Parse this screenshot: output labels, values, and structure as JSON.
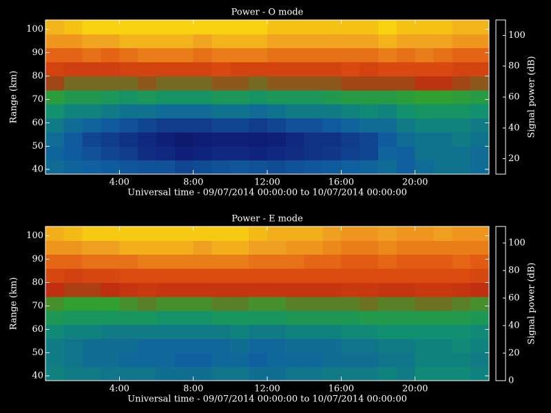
{
  "chart_data": [
    {
      "type": "heatmap",
      "title": "Power - O mode",
      "xlabel": "Universal time - 09/07/2014 00:00:00 to 10/07/2014 00:00:00",
      "ylabel": "Range (km)",
      "colorbar_label": "Signal power (dB)",
      "xlim": [
        0,
        24
      ],
      "ylim": [
        38,
        104
      ],
      "clim": [
        10,
        110
      ],
      "xticks": [
        {
          "value": 4,
          "label": "4:00"
        },
        {
          "value": 8,
          "label": "8:00"
        },
        {
          "value": 12,
          "label": "12:00"
        },
        {
          "value": 16,
          "label": "16:00"
        },
        {
          "value": 20,
          "label": "20:00"
        }
      ],
      "yticks": [
        40,
        50,
        60,
        70,
        80,
        90,
        100
      ],
      "cticks": [
        20,
        40,
        60,
        80,
        100
      ],
      "colormap": [
        "#000040",
        "#10207a",
        "#1060a0",
        "#109070",
        "#30a030",
        "#c03010",
        "#e05010",
        "#f0a020",
        "#ffff00"
      ],
      "x_bins": [
        0,
        1,
        2,
        3,
        4,
        5,
        6,
        7,
        8,
        9,
        10,
        11,
        12,
        13,
        14,
        15,
        16,
        17,
        18,
        19,
        20,
        21,
        22,
        23,
        24
      ],
      "y_bins": [
        38,
        44,
        50,
        56,
        62,
        68,
        74,
        80,
        86,
        92,
        98,
        104
      ],
      "values": [
        [
          38,
          36,
          35,
          34,
          33,
          32,
          32,
          30,
          31,
          32,
          33,
          32,
          31,
          32,
          33,
          34,
          35,
          36,
          38,
          35,
          38,
          40,
          40,
          38
        ],
        [
          36,
          34,
          32,
          30,
          28,
          25,
          24,
          22,
          23,
          24,
          24,
          23,
          24,
          25,
          26,
          27,
          29,
          30,
          36,
          35,
          40,
          40,
          40,
          38
        ],
        [
          38,
          34,
          30,
          28,
          26,
          24,
          22,
          20,
          21,
          22,
          22,
          21,
          22,
          24,
          26,
          26,
          28,
          30,
          34,
          38,
          40,
          40,
          42,
          40
        ],
        [
          42,
          38,
          36,
          34,
          32,
          30,
          28,
          28,
          28,
          30,
          30,
          28,
          30,
          32,
          32,
          34,
          36,
          38,
          38,
          42,
          44,
          44,
          44,
          42
        ],
        [
          48,
          44,
          44,
          42,
          40,
          40,
          38,
          38,
          38,
          40,
          40,
          38,
          40,
          42,
          42,
          42,
          44,
          46,
          44,
          48,
          50,
          50,
          50,
          48
        ],
        [
          58,
          54,
          54,
          52,
          50,
          52,
          50,
          50,
          50,
          52,
          52,
          50,
          52,
          52,
          52,
          54,
          56,
          56,
          56,
          58,
          60,
          60,
          58,
          56
        ],
        [
          70,
          66,
          66,
          66,
          66,
          68,
          66,
          66,
          66,
          68,
          68,
          66,
          68,
          68,
          68,
          68,
          70,
          70,
          70,
          70,
          72,
          72,
          70,
          68
        ],
        [
          80,
          78,
          78,
          78,
          80,
          80,
          80,
          80,
          80,
          82,
          80,
          80,
          80,
          80,
          80,
          80,
          82,
          80,
          82,
          82,
          82,
          82,
          80,
          80
        ],
        [
          88,
          88,
          90,
          88,
          90,
          92,
          92,
          92,
          90,
          92,
          92,
          92,
          90,
          90,
          90,
          90,
          90,
          90,
          92,
          90,
          92,
          90,
          88,
          88
        ],
        [
          96,
          96,
          98,
          98,
          100,
          100,
          100,
          100,
          98,
          100,
          100,
          100,
          98,
          98,
          98,
          98,
          98,
          98,
          100,
          98,
          98,
          98,
          96,
          96
        ],
        [
          100,
          102,
          104,
          104,
          104,
          104,
          104,
          104,
          104,
          104,
          104,
          104,
          102,
          102,
          102,
          102,
          102,
          102,
          104,
          102,
          102,
          102,
          100,
          100
        ]
      ]
    },
    {
      "type": "heatmap",
      "title": "Power - E mode",
      "xlabel": "Universal time - 09/07/2014 00:00:00 to 10/07/2014 00:00:00",
      "ylabel": "Range (km)",
      "colorbar_label": "Signal power (dB)",
      "xlim": [
        0,
        24
      ],
      "ylim": [
        38,
        104
      ],
      "clim": [
        0,
        112
      ],
      "xticks": [
        {
          "value": 4,
          "label": "4:00"
        },
        {
          "value": 8,
          "label": "8:00"
        },
        {
          "value": 12,
          "label": "12:00"
        },
        {
          "value": 16,
          "label": "16:00"
        },
        {
          "value": 20,
          "label": "20:00"
        }
      ],
      "yticks": [
        40,
        50,
        60,
        70,
        80,
        90,
        100
      ],
      "cticks": [
        0,
        20,
        40,
        60,
        80,
        100
      ],
      "colormap": [
        "#000040",
        "#10207a",
        "#1060a0",
        "#109070",
        "#30a030",
        "#c03010",
        "#e05010",
        "#f0a020",
        "#ffff00"
      ],
      "x_bins": [
        0,
        1,
        2,
        3,
        4,
        5,
        6,
        7,
        8,
        9,
        10,
        11,
        12,
        13,
        14,
        15,
        16,
        17,
        18,
        19,
        20,
        21,
        22,
        23,
        24
      ],
      "y_bins": [
        38,
        44,
        50,
        56,
        62,
        68,
        74,
        80,
        86,
        92,
        98,
        104
      ],
      "values": [
        [
          38,
          36,
          36,
          34,
          34,
          34,
          32,
          32,
          32,
          34,
          34,
          32,
          32,
          34,
          34,
          36,
          36,
          36,
          38,
          36,
          40,
          40,
          40,
          38
        ],
        [
          36,
          34,
          32,
          32,
          30,
          30,
          30,
          28,
          28,
          30,
          30,
          28,
          30,
          30,
          30,
          32,
          32,
          32,
          34,
          34,
          38,
          38,
          38,
          36
        ],
        [
          36,
          34,
          32,
          32,
          32,
          30,
          30,
          30,
          30,
          30,
          32,
          30,
          30,
          32,
          32,
          32,
          34,
          34,
          36,
          36,
          38,
          38,
          40,
          38
        ],
        [
          40,
          38,
          38,
          36,
          36,
          36,
          36,
          36,
          36,
          36,
          38,
          36,
          36,
          38,
          38,
          38,
          40,
          40,
          42,
          42,
          42,
          42,
          42,
          40
        ],
        [
          48,
          46,
          46,
          46,
          46,
          46,
          44,
          44,
          44,
          46,
          46,
          46,
          46,
          48,
          48,
          48,
          48,
          50,
          50,
          50,
          50,
          50,
          50,
          48
        ],
        [
          58,
          56,
          56,
          56,
          58,
          60,
          58,
          58,
          58,
          60,
          60,
          58,
          58,
          60,
          60,
          60,
          60,
          62,
          60,
          60,
          62,
          62,
          60,
          58
        ],
        [
          70,
          68,
          68,
          70,
          72,
          74,
          72,
          72,
          72,
          72,
          72,
          72,
          72,
          72,
          72,
          72,
          74,
          74,
          72,
          72,
          74,
          74,
          72,
          70
        ],
        [
          80,
          78,
          80,
          80,
          82,
          82,
          82,
          82,
          82,
          82,
          82,
          82,
          82,
          82,
          82,
          82,
          82,
          82,
          82,
          82,
          82,
          82,
          82,
          80
        ],
        [
          88,
          88,
          90,
          90,
          90,
          92,
          92,
          92,
          92,
          92,
          92,
          90,
          90,
          90,
          88,
          88,
          86,
          86,
          88,
          86,
          86,
          86,
          88,
          86
        ],
        [
          96,
          96,
          98,
          98,
          100,
          100,
          100,
          100,
          98,
          100,
          100,
          98,
          98,
          96,
          96,
          94,
          92,
          92,
          94,
          92,
          92,
          92,
          92,
          92
        ],
        [
          100,
          102,
          104,
          104,
          104,
          104,
          104,
          104,
          104,
          104,
          104,
          102,
          100,
          100,
          100,
          98,
          96,
          96,
          98,
          96,
          96,
          98,
          96,
          96
        ]
      ]
    }
  ]
}
